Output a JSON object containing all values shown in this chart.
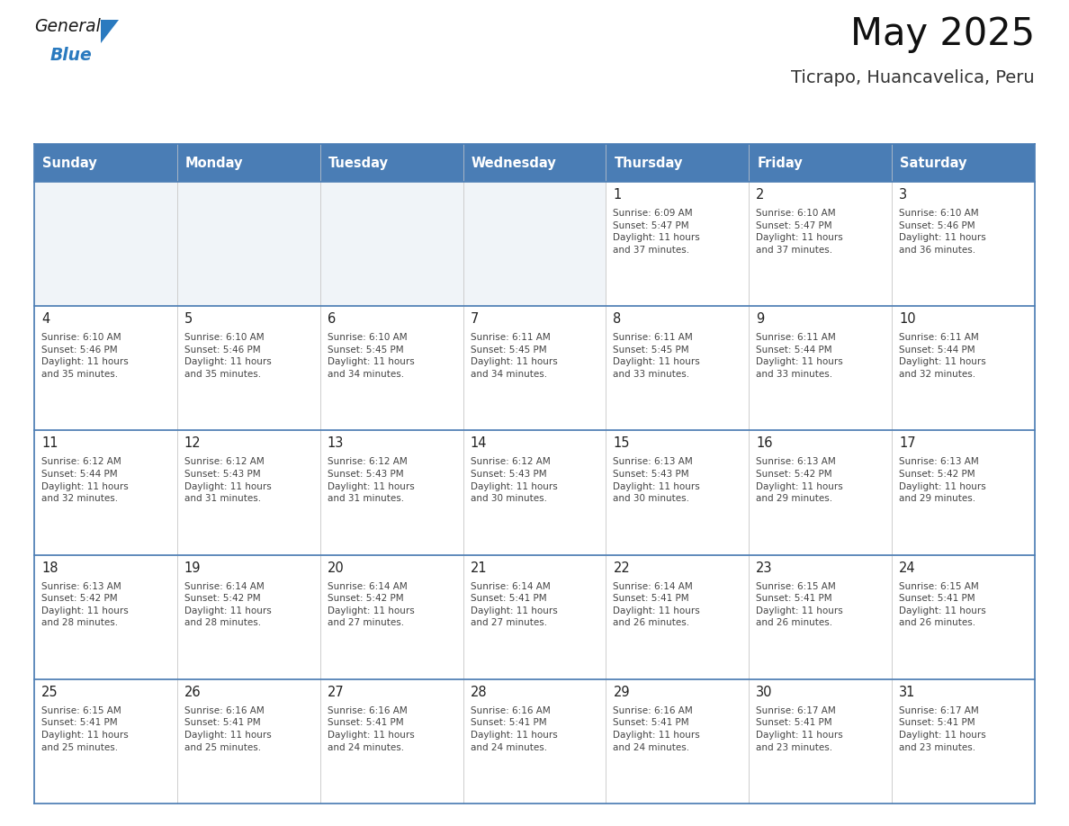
{
  "title": "May 2025",
  "subtitle": "Ticrapo, Huancavelica, Peru",
  "header_bg_color": "#4a7db5",
  "header_text_color": "#ffffff",
  "cell_bg_color": "#ffffff",
  "cell_bg_empty": "#f0f4f8",
  "text_color_dark": "#222222",
  "text_color_body": "#444444",
  "border_color": "#4a7db5",
  "line_color": "#4a7db5",
  "days_of_week": [
    "Sunday",
    "Monday",
    "Tuesday",
    "Wednesday",
    "Thursday",
    "Friday",
    "Saturday"
  ],
  "weeks": [
    [
      {
        "day": 0,
        "text": ""
      },
      {
        "day": 0,
        "text": ""
      },
      {
        "day": 0,
        "text": ""
      },
      {
        "day": 0,
        "text": ""
      },
      {
        "day": 1,
        "text": "Sunrise: 6:09 AM\nSunset: 5:47 PM\nDaylight: 11 hours\nand 37 minutes."
      },
      {
        "day": 2,
        "text": "Sunrise: 6:10 AM\nSunset: 5:47 PM\nDaylight: 11 hours\nand 37 minutes."
      },
      {
        "day": 3,
        "text": "Sunrise: 6:10 AM\nSunset: 5:46 PM\nDaylight: 11 hours\nand 36 minutes."
      }
    ],
    [
      {
        "day": 4,
        "text": "Sunrise: 6:10 AM\nSunset: 5:46 PM\nDaylight: 11 hours\nand 35 minutes."
      },
      {
        "day": 5,
        "text": "Sunrise: 6:10 AM\nSunset: 5:46 PM\nDaylight: 11 hours\nand 35 minutes."
      },
      {
        "day": 6,
        "text": "Sunrise: 6:10 AM\nSunset: 5:45 PM\nDaylight: 11 hours\nand 34 minutes."
      },
      {
        "day": 7,
        "text": "Sunrise: 6:11 AM\nSunset: 5:45 PM\nDaylight: 11 hours\nand 34 minutes."
      },
      {
        "day": 8,
        "text": "Sunrise: 6:11 AM\nSunset: 5:45 PM\nDaylight: 11 hours\nand 33 minutes."
      },
      {
        "day": 9,
        "text": "Sunrise: 6:11 AM\nSunset: 5:44 PM\nDaylight: 11 hours\nand 33 minutes."
      },
      {
        "day": 10,
        "text": "Sunrise: 6:11 AM\nSunset: 5:44 PM\nDaylight: 11 hours\nand 32 minutes."
      }
    ],
    [
      {
        "day": 11,
        "text": "Sunrise: 6:12 AM\nSunset: 5:44 PM\nDaylight: 11 hours\nand 32 minutes."
      },
      {
        "day": 12,
        "text": "Sunrise: 6:12 AM\nSunset: 5:43 PM\nDaylight: 11 hours\nand 31 minutes."
      },
      {
        "day": 13,
        "text": "Sunrise: 6:12 AM\nSunset: 5:43 PM\nDaylight: 11 hours\nand 31 minutes."
      },
      {
        "day": 14,
        "text": "Sunrise: 6:12 AM\nSunset: 5:43 PM\nDaylight: 11 hours\nand 30 minutes."
      },
      {
        "day": 15,
        "text": "Sunrise: 6:13 AM\nSunset: 5:43 PM\nDaylight: 11 hours\nand 30 minutes."
      },
      {
        "day": 16,
        "text": "Sunrise: 6:13 AM\nSunset: 5:42 PM\nDaylight: 11 hours\nand 29 minutes."
      },
      {
        "day": 17,
        "text": "Sunrise: 6:13 AM\nSunset: 5:42 PM\nDaylight: 11 hours\nand 29 minutes."
      }
    ],
    [
      {
        "day": 18,
        "text": "Sunrise: 6:13 AM\nSunset: 5:42 PM\nDaylight: 11 hours\nand 28 minutes."
      },
      {
        "day": 19,
        "text": "Sunrise: 6:14 AM\nSunset: 5:42 PM\nDaylight: 11 hours\nand 28 minutes."
      },
      {
        "day": 20,
        "text": "Sunrise: 6:14 AM\nSunset: 5:42 PM\nDaylight: 11 hours\nand 27 minutes."
      },
      {
        "day": 21,
        "text": "Sunrise: 6:14 AM\nSunset: 5:41 PM\nDaylight: 11 hours\nand 27 minutes."
      },
      {
        "day": 22,
        "text": "Sunrise: 6:14 AM\nSunset: 5:41 PM\nDaylight: 11 hours\nand 26 minutes."
      },
      {
        "day": 23,
        "text": "Sunrise: 6:15 AM\nSunset: 5:41 PM\nDaylight: 11 hours\nand 26 minutes."
      },
      {
        "day": 24,
        "text": "Sunrise: 6:15 AM\nSunset: 5:41 PM\nDaylight: 11 hours\nand 26 minutes."
      }
    ],
    [
      {
        "day": 25,
        "text": "Sunrise: 6:15 AM\nSunset: 5:41 PM\nDaylight: 11 hours\nand 25 minutes."
      },
      {
        "day": 26,
        "text": "Sunrise: 6:16 AM\nSunset: 5:41 PM\nDaylight: 11 hours\nand 25 minutes."
      },
      {
        "day": 27,
        "text": "Sunrise: 6:16 AM\nSunset: 5:41 PM\nDaylight: 11 hours\nand 24 minutes."
      },
      {
        "day": 28,
        "text": "Sunrise: 6:16 AM\nSunset: 5:41 PM\nDaylight: 11 hours\nand 24 minutes."
      },
      {
        "day": 29,
        "text": "Sunrise: 6:16 AM\nSunset: 5:41 PM\nDaylight: 11 hours\nand 24 minutes."
      },
      {
        "day": 30,
        "text": "Sunrise: 6:17 AM\nSunset: 5:41 PM\nDaylight: 11 hours\nand 23 minutes."
      },
      {
        "day": 31,
        "text": "Sunrise: 6:17 AM\nSunset: 5:41 PM\nDaylight: 11 hours\nand 23 minutes."
      }
    ]
  ],
  "logo_general_color": "#1a1a1a",
  "logo_blue_color": "#2a7abf",
  "logo_triangle_color": "#2a7abf",
  "fig_width": 11.88,
  "fig_height": 9.18,
  "dpi": 100
}
